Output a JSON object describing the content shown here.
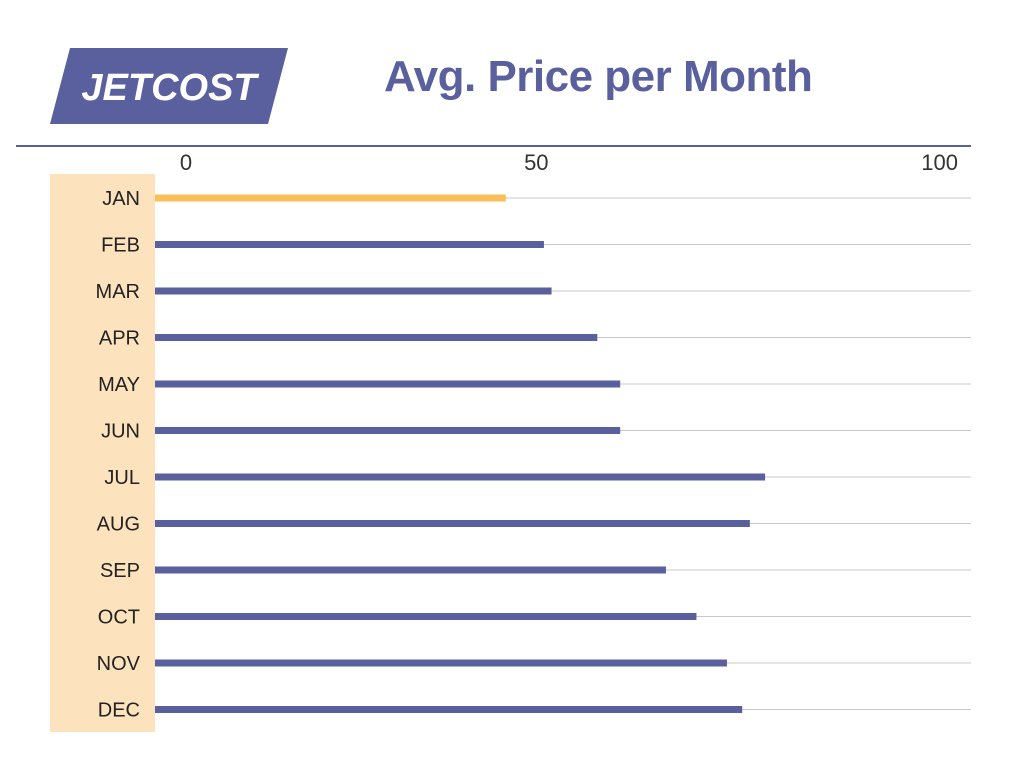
{
  "brand": {
    "logo_text": "JETCOST",
    "logo_color": "#5a609e"
  },
  "chart_data": {
    "type": "bar",
    "orientation": "horizontal",
    "title": "Avg. Price per Month",
    "categories": [
      "JAN",
      "FEB",
      "MAR",
      "APR",
      "MAY",
      "JUN",
      "JUL",
      "AUG",
      "SEP",
      "OCT",
      "NOV",
      "DEC"
    ],
    "values": [
      46,
      51,
      52,
      58,
      61,
      61,
      80,
      78,
      67,
      71,
      75,
      77
    ],
    "highlight_index": 0,
    "xlim": [
      0,
      107
    ],
    "xticks": [
      0,
      50,
      100
    ],
    "grid": true,
    "colors": {
      "bar": "#5a609e",
      "highlight": "#fbbf5a",
      "category_band": "#fde3bd",
      "grid": "#c8c8c8"
    }
  }
}
